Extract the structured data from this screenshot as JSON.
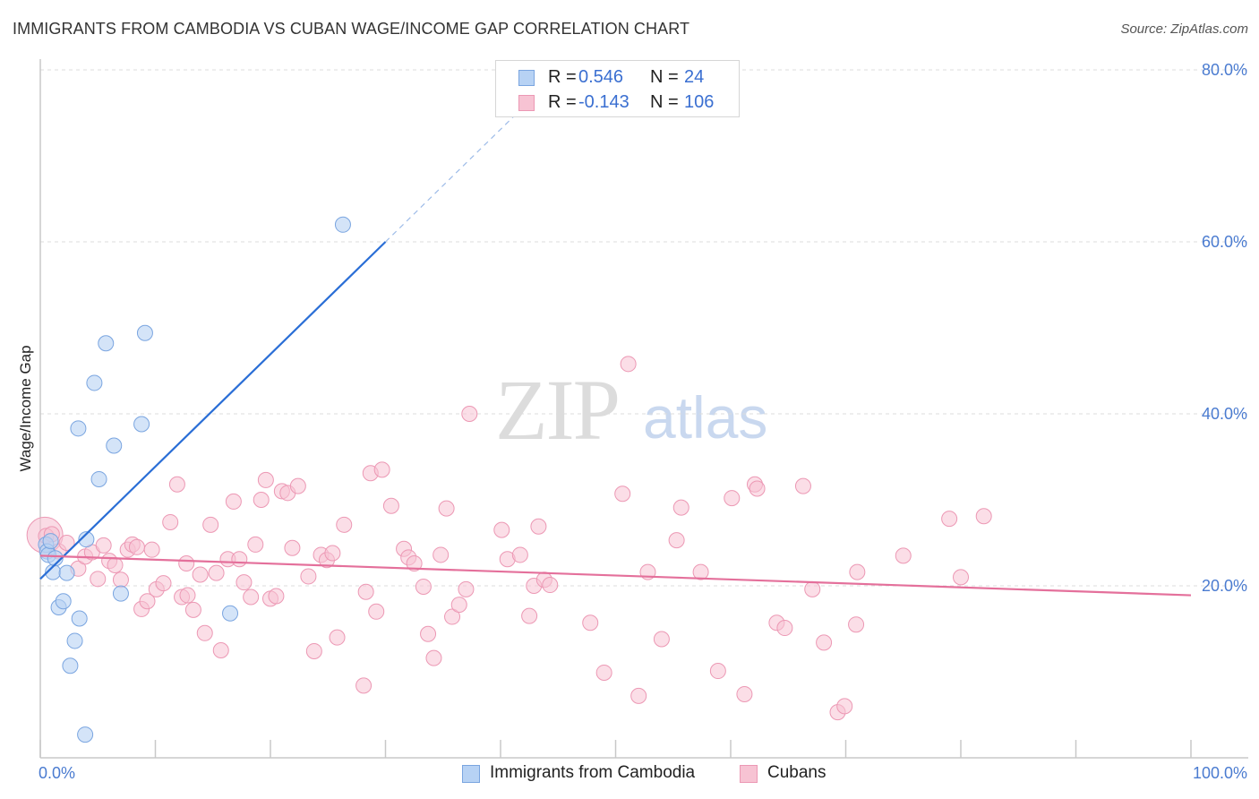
{
  "header": {
    "title": "IMMIGRANTS FROM CAMBODIA VS CUBAN WAGE/INCOME GAP CORRELATION CHART",
    "source": "Source: ZipAtlas.com"
  },
  "legend": {
    "rows": [
      {
        "r_label": "R =",
        "r_value": "0.546",
        "n_label": "N =",
        "n_value": "24",
        "color": "#a9c8f2"
      },
      {
        "r_label": "R =",
        "r_value": "-0.143",
        "n_label": "N =",
        "n_value": "106",
        "color": "#f5b8cb"
      }
    ]
  },
  "bottom_legend": {
    "series1": "Immigrants from Cambodia",
    "series2": "Cubans"
  },
  "watermark": {
    "zip": "ZIP",
    "atlas": "atlas"
  },
  "colors": {
    "blue_fill": "#b7d2f4",
    "blue_stroke": "#7aa5e0",
    "blue_line": "#2a6ed6",
    "pink_fill": "#f7c3d3",
    "pink_stroke": "#ec98b4",
    "pink_line": "#e4709b",
    "grid": "#dcdcdc",
    "axis_label": "#4a7bd0"
  },
  "chart_data": {
    "type": "scatter",
    "title": "IMMIGRANTS FROM CAMBODIA VS CUBAN WAGE/INCOME GAP CORRELATION CHART",
    "xlabel": "",
    "ylabel": "Wage/Income Gap",
    "xlim": [
      0,
      100
    ],
    "ylim": [
      0,
      80
    ],
    "x_ticks": [
      "0.0%",
      "100.0%"
    ],
    "y_ticks": [
      "20.0%",
      "40.0%",
      "60.0%",
      "80.0%"
    ],
    "grid": "horizontal dashed",
    "legend_position": "top-center",
    "series": [
      {
        "name": "Immigrants from Cambodia",
        "r": 0.546,
        "n": 24,
        "trend": {
          "x0": 0.0,
          "y0": 20.8,
          "x1": 30.0,
          "y1": 60.0,
          "dash_to_x": 42.0,
          "dash_to_y": 75.7
        },
        "points": [
          [
            0.5,
            24.8
          ],
          [
            0.6,
            24.0
          ],
          [
            0.7,
            23.6
          ],
          [
            1.1,
            21.6
          ],
          [
            1.3,
            23.2
          ],
          [
            1.6,
            17.5
          ],
          [
            2.0,
            18.2
          ],
          [
            2.3,
            21.5
          ],
          [
            2.6,
            10.7
          ],
          [
            3.0,
            13.6
          ],
          [
            3.4,
            16.2
          ],
          [
            3.3,
            38.3
          ],
          [
            3.9,
            2.7
          ],
          [
            4.0,
            25.4
          ],
          [
            4.7,
            43.6
          ],
          [
            5.1,
            32.4
          ],
          [
            5.7,
            48.2
          ],
          [
            6.4,
            36.3
          ],
          [
            7.0,
            19.1
          ],
          [
            8.8,
            38.8
          ],
          [
            9.1,
            49.4
          ],
          [
            16.5,
            16.8
          ],
          [
            26.3,
            62.0
          ],
          [
            0.9,
            25.2
          ]
        ]
      },
      {
        "name": "Cubans",
        "r": -0.143,
        "n": 106,
        "trend": {
          "x0": 0.0,
          "y0": 23.5,
          "x1": 100.0,
          "y1": 18.9
        },
        "points": [
          [
            0.5,
            25.8
          ],
          [
            1.0,
            26.0
          ],
          [
            1.6,
            24.0
          ],
          [
            2.3,
            25.0
          ],
          [
            3.3,
            22.0
          ],
          [
            3.9,
            23.4
          ],
          [
            4.5,
            23.9
          ],
          [
            5.0,
            20.8
          ],
          [
            5.5,
            24.7
          ],
          [
            6.0,
            22.9
          ],
          [
            6.5,
            22.4
          ],
          [
            7.0,
            20.7
          ],
          [
            7.6,
            24.2
          ],
          [
            8.0,
            24.8
          ],
          [
            8.4,
            24.5
          ],
          [
            8.8,
            17.3
          ],
          [
            9.3,
            18.2
          ],
          [
            9.7,
            24.2
          ],
          [
            10.1,
            19.6
          ],
          [
            10.7,
            20.3
          ],
          [
            11.3,
            27.4
          ],
          [
            11.9,
            31.8
          ],
          [
            12.3,
            18.7
          ],
          [
            12.8,
            18.9
          ],
          [
            13.3,
            17.2
          ],
          [
            13.9,
            21.3
          ],
          [
            14.3,
            14.5
          ],
          [
            14.8,
            27.1
          ],
          [
            15.3,
            21.5
          ],
          [
            15.7,
            12.5
          ],
          [
            16.3,
            23.1
          ],
          [
            16.8,
            29.8
          ],
          [
            17.3,
            23.1
          ],
          [
            17.7,
            20.4
          ],
          [
            18.3,
            18.7
          ],
          [
            18.7,
            24.8
          ],
          [
            19.2,
            30.0
          ],
          [
            19.6,
            32.3
          ],
          [
            20.0,
            18.5
          ],
          [
            20.5,
            18.8
          ],
          [
            21.0,
            31.0
          ],
          [
            21.5,
            30.8
          ],
          [
            21.9,
            24.4
          ],
          [
            22.4,
            31.6
          ],
          [
            23.8,
            12.4
          ],
          [
            24.4,
            23.6
          ],
          [
            24.9,
            23.0
          ],
          [
            25.4,
            23.8
          ],
          [
            25.8,
            14.0
          ],
          [
            26.4,
            27.1
          ],
          [
            28.1,
            8.4
          ],
          [
            28.3,
            19.3
          ],
          [
            28.7,
            33.1
          ],
          [
            29.2,
            17.0
          ],
          [
            29.7,
            33.5
          ],
          [
            30.5,
            29.3
          ],
          [
            31.6,
            24.3
          ],
          [
            32.0,
            23.3
          ],
          [
            32.5,
            22.6
          ],
          [
            33.3,
            19.9
          ],
          [
            33.7,
            14.4
          ],
          [
            34.2,
            11.6
          ],
          [
            34.8,
            23.6
          ],
          [
            35.3,
            29.0
          ],
          [
            35.8,
            16.4
          ],
          [
            37.0,
            19.6
          ],
          [
            37.3,
            40.0
          ],
          [
            40.1,
            26.5
          ],
          [
            40.6,
            23.1
          ],
          [
            41.7,
            23.6
          ],
          [
            42.5,
            16.5
          ],
          [
            42.9,
            20.0
          ],
          [
            43.3,
            26.9
          ],
          [
            43.8,
            20.7
          ],
          [
            44.3,
            20.1
          ],
          [
            47.8,
            15.7
          ],
          [
            49.0,
            9.9
          ],
          [
            50.6,
            30.7
          ],
          [
            51.1,
            45.8
          ],
          [
            52.0,
            7.2
          ],
          [
            52.8,
            21.6
          ],
          [
            54.0,
            13.8
          ],
          [
            55.3,
            25.3
          ],
          [
            55.7,
            29.1
          ],
          [
            57.4,
            21.6
          ],
          [
            58.9,
            10.1
          ],
          [
            60.1,
            30.2
          ],
          [
            61.2,
            7.4
          ],
          [
            62.1,
            31.8
          ],
          [
            62.3,
            31.3
          ],
          [
            64.0,
            15.7
          ],
          [
            64.7,
            15.1
          ],
          [
            66.3,
            31.6
          ],
          [
            67.1,
            19.6
          ],
          [
            68.1,
            13.4
          ],
          [
            69.3,
            5.3
          ],
          [
            69.9,
            6.0
          ],
          [
            70.9,
            15.5
          ],
          [
            71.0,
            21.6
          ],
          [
            75.0,
            23.5
          ],
          [
            79.0,
            27.8
          ],
          [
            80.0,
            21.0
          ],
          [
            82.0,
            28.1
          ],
          [
            12.7,
            22.6
          ],
          [
            36.4,
            17.8
          ],
          [
            23.3,
            21.1
          ]
        ]
      }
    ]
  }
}
